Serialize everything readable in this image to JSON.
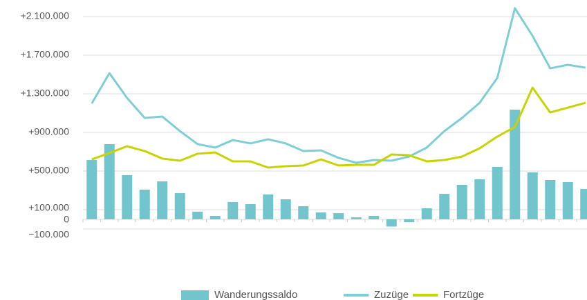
{
  "chart_data": {
    "type": "bar_line",
    "categories": [
      null,
      null,
      null,
      null,
      null,
      null,
      null,
      null,
      null,
      null,
      null,
      null,
      null,
      null,
      null,
      null,
      null,
      null,
      null,
      null,
      null,
      null,
      null,
      null,
      null,
      null,
      null,
      null,
      null
    ],
    "series": [
      {
        "name": "Wanderungssaldo",
        "type": "bar",
        "color": "#72c5cd",
        "values": [
          614000,
          779000,
          457000,
          307000,
          393000,
          271000,
          79000,
          36000,
          179000,
          157000,
          257000,
          207000,
          136000,
          71000,
          64000,
          20000,
          36000,
          -75000,
          -30000,
          114000,
          264000,
          357000,
          414000,
          543000,
          1136000,
          486000,
          407000,
          386000,
          314000
        ]
      },
      {
        "name": "Zuzüge",
        "type": "line",
        "color": "#7ccfd8",
        "values": [
          1200000,
          1514000,
          1257000,
          1050000,
          1064000,
          914000,
          779000,
          743000,
          821000,
          786000,
          829000,
          786000,
          707000,
          714000,
          636000,
          586000,
          614000,
          607000,
          650000,
          743000,
          914000,
          1050000,
          1207000,
          1464000,
          2186000,
          1900000,
          1564000,
          1600000,
          1571000
        ]
      },
      {
        "name": "Fortzüge",
        "type": "line",
        "color": "#c8d400",
        "values": [
          621000,
          686000,
          757000,
          707000,
          629000,
          607000,
          679000,
          693000,
          600000,
          600000,
          536000,
          550000,
          557000,
          621000,
          557000,
          564000,
          564000,
          671000,
          664000,
          600000,
          614000,
          650000,
          736000,
          857000,
          957000,
          1364000,
          1107000,
          1157000,
          1207000
        ]
      }
    ],
    "ylim": [
      -100000,
      2200000
    ],
    "yticks": [
      {
        "value": -100000,
        "label": "−100.000"
      },
      0,
      {
        "value": 100000,
        "label": "+100.000"
      },
      {
        "value": 500000,
        "label": "+500.000"
      },
      {
        "value": 900000,
        "label": "+900.000"
      },
      {
        "value": 1300000,
        "label": "+1.300.000"
      },
      {
        "value": 1700000,
        "label": "+1.700.000"
      },
      {
        "value": 2100000,
        "label": "+2.100.000"
      }
    ],
    "grid": true
  }
}
